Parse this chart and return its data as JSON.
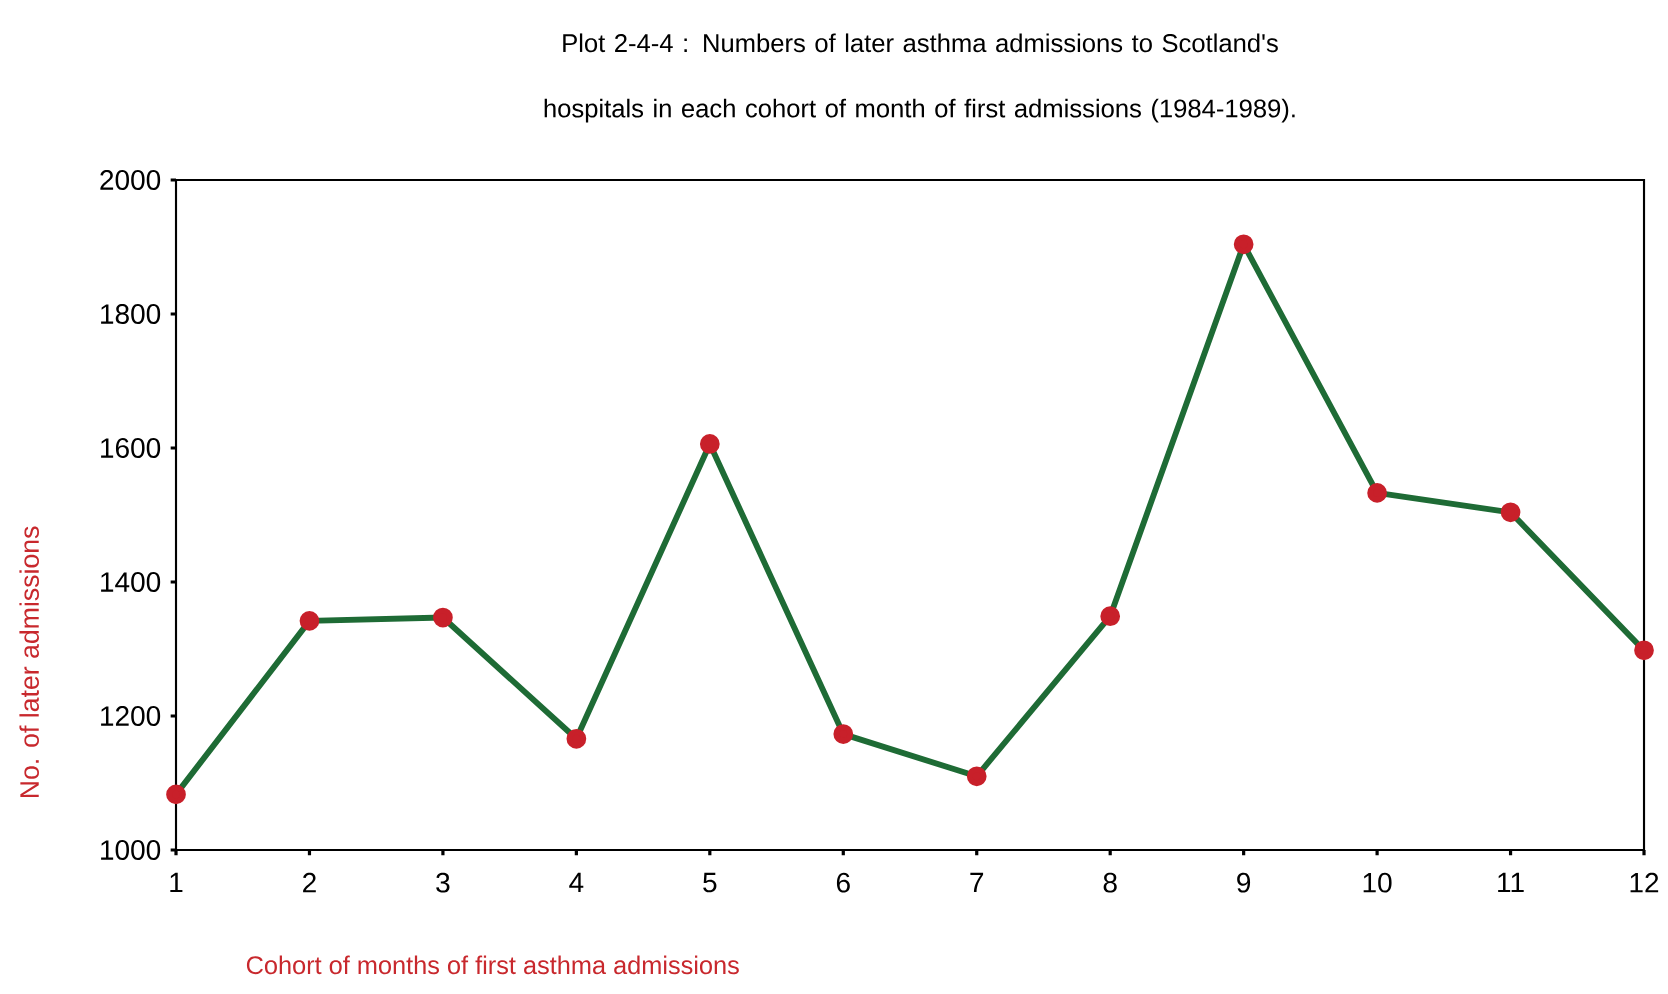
{
  "chart_data": {
    "type": "line",
    "title": "Plot 2-4-4 : Numbers of later asthma admissions to Scotland's hospitals in each cohort of month of first admissions (1984-1989).",
    "xlabel": "Cohort of months of first asthma admissions",
    "ylabel": "No. of later admissions",
    "x": [
      1,
      2,
      3,
      4,
      5,
      6,
      7,
      8,
      9,
      10,
      11,
      12
    ],
    "series": [
      {
        "color": "#1e6b35",
        "values": [
          1083,
          1342,
          1347,
          1166,
          1606,
          1173,
          1110,
          1349,
          1904,
          1533,
          1504,
          1298
        ]
      }
    ],
    "xlim": [
      1,
      12
    ],
    "xticks": [
      1,
      2,
      3,
      4,
      5,
      6,
      7,
      8,
      9,
      10,
      11,
      12
    ],
    "ylim": [
      1000,
      2000
    ],
    "yticks": [
      1000,
      1200,
      1400,
      1600,
      1800,
      2000
    ],
    "marker": "circle",
    "line_style": "solid",
    "grid": false
  }
}
